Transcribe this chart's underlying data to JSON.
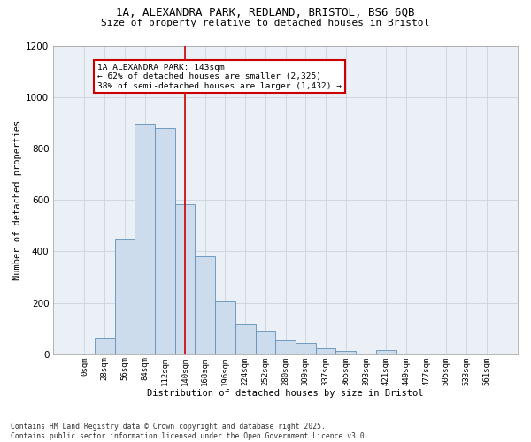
{
  "title_line1": "1A, ALEXANDRA PARK, REDLAND, BRISTOL, BS6 6QB",
  "title_line2": "Size of property relative to detached houses in Bristol",
  "xlabel": "Distribution of detached houses by size in Bristol",
  "ylabel": "Number of detached properties",
  "bar_labels": [
    "0sqm",
    "28sqm",
    "56sqm",
    "84sqm",
    "112sqm",
    "140sqm",
    "168sqm",
    "196sqm",
    "224sqm",
    "252sqm",
    "280sqm",
    "309sqm",
    "337sqm",
    "365sqm",
    "393sqm",
    "421sqm",
    "449sqm",
    "477sqm",
    "505sqm",
    "533sqm",
    "561sqm"
  ],
  "bar_heights": [
    0,
    65,
    450,
    895,
    880,
    585,
    380,
    205,
    115,
    90,
    55,
    45,
    25,
    12,
    0,
    15,
    0,
    0,
    0,
    0,
    0
  ],
  "bar_color": "#ccdcec",
  "bar_edge_color": "#6090b8",
  "grid_color": "#c8d4e0",
  "background_color": "#eaf0f6",
  "vline_x_index": 5,
  "vline_color": "#cc0000",
  "annotation_text": "1A ALEXANDRA PARK: 143sqm\n← 62% of detached houses are smaller (2,325)\n38% of semi-detached houses are larger (1,432) →",
  "annotation_box_color": "#cc0000",
  "ylim": [
    0,
    1200
  ],
  "yticks": [
    0,
    200,
    400,
    600,
    800,
    1000,
    1200
  ],
  "footer_text": "Contains HM Land Registry data © Crown copyright and database right 2025.\nContains public sector information licensed under the Open Government Licence v3.0.",
  "bar_width": 1.0,
  "figsize": [
    6.0,
    5.0
  ],
  "dpi": 100
}
